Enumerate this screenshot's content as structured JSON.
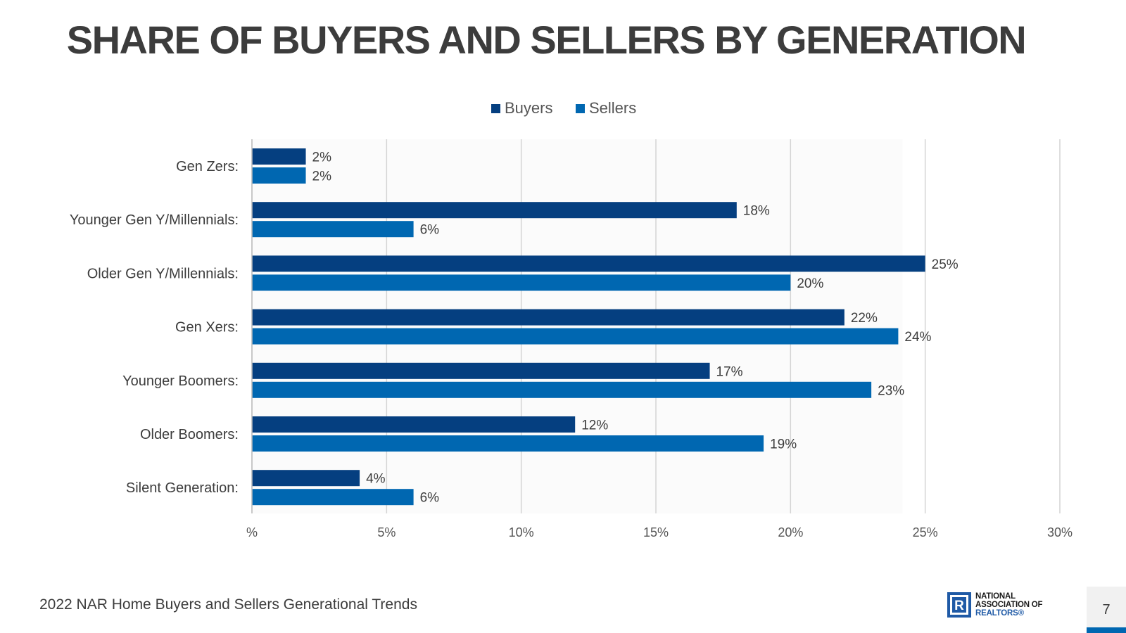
{
  "slide": {
    "title": "SHARE OF BUYERS AND SELLERS BY GENERATION",
    "footer": "2022 NAR Home Buyers and Sellers Generational Trends",
    "page_number": "7",
    "logo": {
      "line1": "NATIONAL",
      "line2": "ASSOCIATION OF",
      "line3": "REALTORS®",
      "mark_letter": "R"
    }
  },
  "colors": {
    "buyers": "#053f80",
    "sellers": "#0067b1",
    "text": "#3c3c3c",
    "grid": "#d4d4d4"
  },
  "chart_data": {
    "type": "bar",
    "orientation": "horizontal",
    "title": "SHARE OF BUYERS AND SELLERS BY GENERATION",
    "categories": [
      "Gen Zers:",
      "Younger Gen Y/Millennials:",
      "Older Gen Y/Millennials:",
      "Gen Xers:",
      "Younger Boomers:",
      "Older Boomers:",
      "Silent Generation:"
    ],
    "series": [
      {
        "name": "Buyers",
        "values": [
          2,
          18,
          25,
          22,
          17,
          12,
          4
        ]
      },
      {
        "name": "Sellers",
        "values": [
          2,
          6,
          20,
          24,
          23,
          19,
          6
        ]
      }
    ],
    "value_suffix": "%",
    "xlim": [
      0,
      30
    ],
    "xticks": [
      0,
      5,
      10,
      15,
      20,
      25,
      30
    ],
    "xtick_labels": [
      "%",
      "5%",
      "10%",
      "15%",
      "20%",
      "25%",
      "30%"
    ],
    "grid": true,
    "legend_position": "top-center"
  }
}
